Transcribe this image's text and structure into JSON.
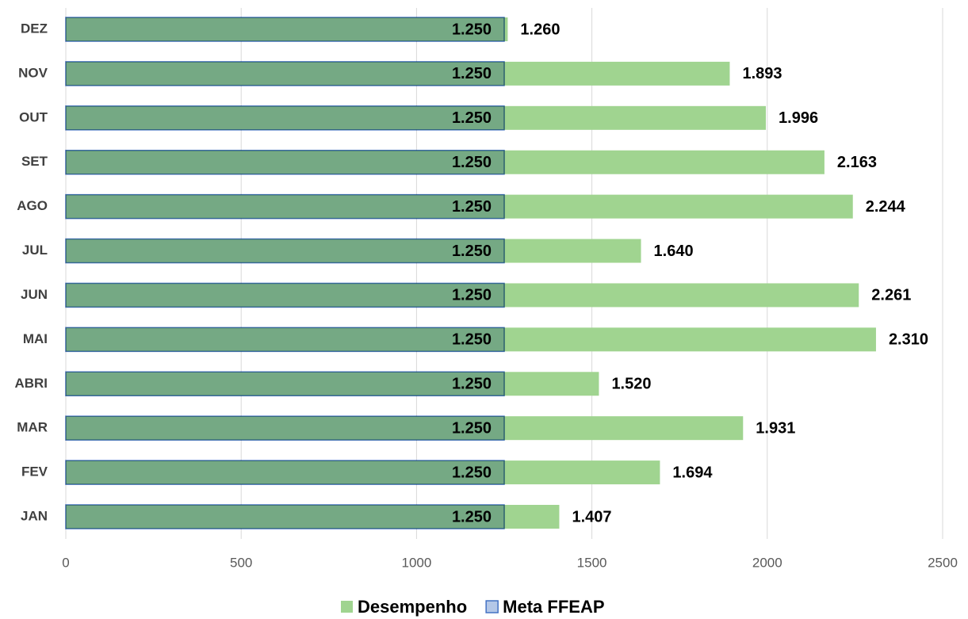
{
  "chart_data": {
    "type": "bar",
    "orientation": "horizontal",
    "overlap": true,
    "categories": [
      "JAN",
      "FEV",
      "MAR",
      "ABRI",
      "MAI",
      "JUN",
      "JUL",
      "AGO",
      "SET",
      "OUT",
      "NOV",
      "DEZ"
    ],
    "series": [
      {
        "name": "Desempenho",
        "color": "#a0d490",
        "values": [
          1407,
          1694,
          1931,
          1520,
          2310,
          2261,
          1640,
          2244,
          2163,
          1996,
          1893,
          1260
        ],
        "value_labels": [
          "1.407",
          "1.694",
          "1.931",
          "1.520",
          "2.310",
          "2.261",
          "1.640",
          "2.244",
          "2.163",
          "1.996",
          "1.893",
          "1.260"
        ]
      },
      {
        "name": "Meta FFEAP",
        "color": "#b4c7e7",
        "border": "#4472c4",
        "values": [
          1250,
          1250,
          1250,
          1250,
          1250,
          1250,
          1250,
          1250,
          1250,
          1250,
          1250,
          1250
        ],
        "value_labels": [
          "1.250",
          "1.250",
          "1.250",
          "1.250",
          "1.250",
          "1.250",
          "1.250",
          "1.250",
          "1.250",
          "1.250",
          "1.250",
          "1.250"
        ]
      }
    ],
    "xlim": [
      0,
      2500
    ],
    "xticks": [
      0,
      500,
      1000,
      1500,
      2000,
      2500
    ],
    "grid": true,
    "legend": "bottom"
  }
}
